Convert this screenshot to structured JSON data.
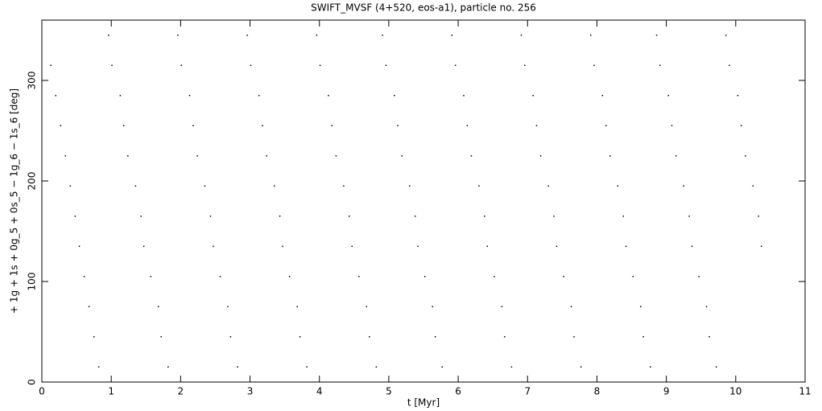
{
  "chart_data": {
    "type": "scatter",
    "title": "SWIFT_MVSF (4+520, eos-a1), particle no. 256",
    "x_label": "t [Myr]",
    "y_label": "+ 1g + 1s + 0g_5 + 0s_5 − 1g_6 − 1s_6 [deg]",
    "color": "#000000",
    "xlim": [
      0,
      11
    ],
    "xticks": [
      0,
      1,
      2,
      3,
      4,
      5,
      6,
      7,
      8,
      9,
      10,
      11
    ],
    "ylim": [
      0,
      360
    ],
    "yticks": [
      0,
      100,
      200,
      300
    ],
    "series": [
      {
        "name": "particle",
        "color": "#000000",
        "x": [
          0.13,
          0.2,
          0.27,
          0.34,
          0.41,
          0.48,
          0.54,
          0.61,
          0.68,
          0.75,
          0.82,
          0.96,
          1.01,
          1.13,
          1.18,
          1.24,
          1.35,
          1.43,
          1.47,
          1.57,
          1.68,
          1.72,
          1.82,
          1.96,
          2.01,
          2.13,
          2.18,
          2.24,
          2.35,
          2.43,
          2.47,
          2.57,
          2.68,
          2.72,
          2.82,
          2.96,
          3.01,
          3.13,
          3.18,
          3.24,
          3.35,
          3.43,
          3.47,
          3.57,
          3.68,
          3.72,
          3.82,
          3.96,
          4.01,
          4.13,
          4.18,
          4.24,
          4.35,
          4.43,
          4.47,
          4.57,
          4.68,
          4.72,
          4.82,
          4.91,
          4.96,
          5.08,
          5.13,
          5.19,
          5.3,
          5.38,
          5.42,
          5.52,
          5.63,
          5.67,
          5.77,
          5.91,
          5.96,
          6.08,
          6.13,
          6.19,
          6.3,
          6.38,
          6.42,
          6.52,
          6.63,
          6.67,
          6.77,
          6.91,
          6.96,
          7.08,
          7.13,
          7.19,
          7.3,
          7.38,
          7.42,
          7.52,
          7.63,
          7.67,
          7.77,
          7.91,
          7.96,
          8.08,
          8.13,
          8.19,
          8.3,
          8.38,
          8.42,
          8.52,
          8.63,
          8.67,
          8.77,
          8.86,
          8.91,
          9.03,
          9.08,
          9.14,
          9.25,
          9.33,
          9.37,
          9.47,
          9.58,
          9.62,
          9.72,
          9.86,
          9.91,
          10.03,
          10.08,
          10.14,
          10.25,
          10.33,
          10.37
        ],
        "values": [
          315,
          285,
          255,
          225,
          195,
          165,
          135,
          105,
          75,
          45,
          15,
          345,
          315,
          285,
          255,
          225,
          195,
          165,
          135,
          105,
          75,
          45,
          15,
          345,
          315,
          285,
          255,
          225,
          195,
          165,
          135,
          105,
          75,
          45,
          15,
          345,
          315,
          285,
          255,
          225,
          195,
          165,
          135,
          105,
          75,
          45,
          15,
          345,
          315,
          285,
          255,
          225,
          195,
          165,
          135,
          105,
          75,
          45,
          15,
          345,
          315,
          285,
          255,
          225,
          195,
          165,
          135,
          105,
          75,
          45,
          15,
          345,
          315,
          285,
          255,
          225,
          195,
          165,
          135,
          105,
          75,
          45,
          15,
          345,
          315,
          285,
          255,
          225,
          195,
          165,
          135,
          105,
          75,
          45,
          15,
          345,
          315,
          285,
          255,
          225,
          195,
          165,
          135,
          105,
          75,
          45,
          15,
          345,
          315,
          285,
          255,
          225,
          195,
          165,
          135,
          105,
          75,
          45,
          15,
          345,
          315,
          285,
          255,
          225,
          195,
          165,
          135
        ]
      }
    ]
  }
}
